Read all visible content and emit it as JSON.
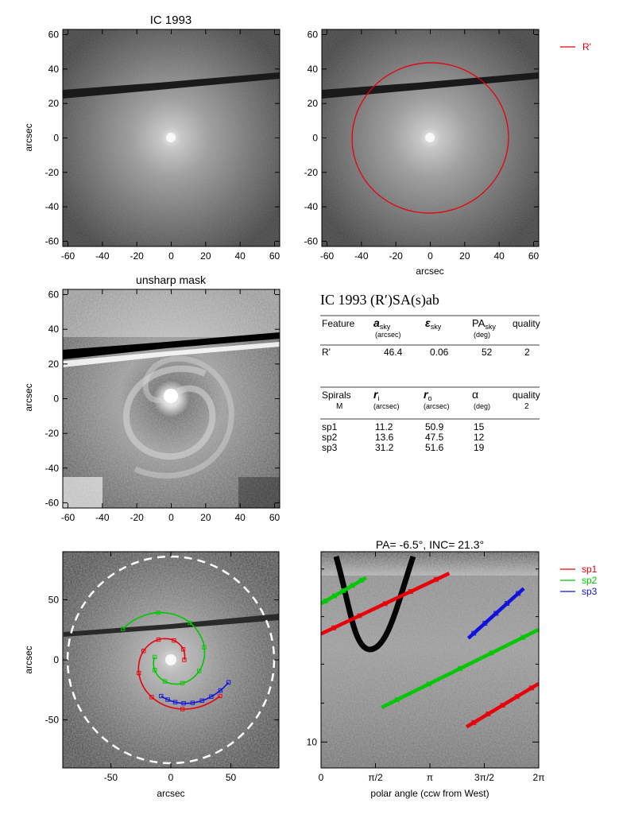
{
  "chart_data": [
    {
      "type": "heatmap",
      "panel": "sky-image",
      "title": "IC 1993",
      "xlabel": "",
      "ylabel": "arcsec",
      "xlim": [
        -63,
        63
      ],
      "ylim": [
        -63,
        63
      ],
      "xticks": [
        "-60",
        "-40",
        "-20",
        "0",
        "20",
        "40",
        "60"
      ],
      "yticks": [
        "60",
        "40",
        "20",
        "0",
        "-20",
        "-40",
        "-60"
      ],
      "colormap": "grayscale"
    },
    {
      "type": "heatmap",
      "panel": "sky-image-with-ring",
      "title": "",
      "xlabel": "arcsec",
      "ylabel": "",
      "xlim": [
        -63,
        63
      ],
      "ylim": [
        -63,
        63
      ],
      "xticks": [
        "-60",
        "-40",
        "-20",
        "0",
        "20",
        "40",
        "60"
      ],
      "yticks": [
        "60",
        "40",
        "20",
        "0",
        "-20",
        "-40",
        "-60"
      ],
      "legend": [
        {
          "label": "R'",
          "color": "#e8000b"
        }
      ],
      "ellipse": {
        "name": "R'",
        "color": "#e8000b",
        "a": 46.4,
        "b": 43.6,
        "pa_deg": 52,
        "center": [
          0,
          0
        ]
      }
    },
    {
      "type": "heatmap",
      "panel": "unsharp-mask",
      "title": "unsharp mask",
      "xlabel": "",
      "ylabel": "arcsec",
      "xlim": [
        -63,
        63
      ],
      "ylim": [
        -63,
        63
      ],
      "xticks": [
        "-60",
        "-40",
        "-20",
        "0",
        "20",
        "40",
        "60"
      ],
      "yticks": [
        "60",
        "40",
        "20",
        "0",
        "-20",
        "-40",
        "-60"
      ]
    },
    {
      "type": "heatmap",
      "panel": "deprojected-spirals",
      "title": "",
      "xlabel": "arcsec",
      "ylabel": "arcsec",
      "xlim": [
        -90,
        90
      ],
      "ylim": [
        -90,
        90
      ],
      "xticks": [
        "-50",
        "0",
        "50"
      ],
      "yticks": [
        "50",
        "0",
        "-50"
      ],
      "dashed_circle": {
        "color": "#ffffff",
        "r": 86
      },
      "series": [
        {
          "name": "sp1",
          "color": "#e8000b",
          "r_inner": 11.2,
          "r_outer": 50.9,
          "pitch_deg": 15,
          "start_angle_deg": 0
        },
        {
          "name": "sp2",
          "color": "#00c800",
          "r_inner": 13.6,
          "r_outer": 47.5,
          "pitch_deg": 12,
          "start_angle_deg": 170
        },
        {
          "name": "sp3",
          "color": "#1010e0",
          "r_inner": 31.2,
          "r_outer": 51.6,
          "pitch_deg": 19,
          "start_angle_deg": 255
        }
      ]
    },
    {
      "type": "line",
      "panel": "polar-plot",
      "title": "PA=  -6.5°, INC=  21.3°",
      "xlabel": "polar angle (ccw from West)",
      "ylabel": "",
      "xlim": [
        0,
        6.2832
      ],
      "xticks": [
        "0",
        "π/2",
        "π",
        "3π/2",
        "2π"
      ],
      "yticks": [
        "10"
      ],
      "legend": [
        {
          "label": "sp1",
          "color": "#e8000b"
        },
        {
          "label": "sp2",
          "color": "#00c800"
        },
        {
          "label": "sp3",
          "color": "#1010e0"
        }
      ],
      "series": [
        {
          "name": "sp1",
          "color": "#e8000b",
          "segments": [
            [
              [
                0.0,
                0.38
              ],
              [
                3.7,
                0.1
              ]
            ],
            [
              [
                4.2,
                0.81
              ],
              [
                6.2832,
                0.61
              ]
            ]
          ]
        },
        {
          "name": "sp2",
          "color": "#00c800",
          "segments": [
            [
              [
                0.0,
                0.24
              ],
              [
                1.3,
                0.12
              ]
            ],
            [
              [
                1.75,
                0.72
              ],
              [
                6.2832,
                0.36
              ]
            ]
          ]
        },
        {
          "name": "sp3",
          "color": "#1010e0",
          "segments": [
            [
              [
                4.25,
                0.4
              ],
              [
                5.85,
                0.17
              ]
            ]
          ]
        }
      ]
    }
  ],
  "table": {
    "title": "IC 1993  (R′)SA(s)ab",
    "feature_headers": {
      "c1": "Feature",
      "c2": "a",
      "c2_sub": "sky",
      "c2_unit": "(arcsec)",
      "c3": "ε",
      "c3_sub": "sky",
      "c4": "PA",
      "c4_sub": "sky",
      "c4_unit": "(deg)",
      "c5": "quality"
    },
    "feature_rows": [
      {
        "feature": "R'",
        "a": "46.4",
        "eps": "0.06",
        "pa": "52",
        "quality": "2"
      }
    ],
    "spiral_headers": {
      "c1": "Spirals",
      "c1_sub": "M",
      "c2": "r",
      "c2_sub": "i",
      "c2_unit": "(arcsec)",
      "c3": "r",
      "c3_sub": "o",
      "c3_unit": "(arcsec)",
      "c4": "α",
      "c4_unit": "(deg)",
      "c5": "quality",
      "c5_sub": "2"
    },
    "spiral_rows": [
      {
        "name": "sp1",
        "ri": "11.2",
        "ro": "50.9",
        "alpha": "15"
      },
      {
        "name": "sp2",
        "ri": "13.6",
        "ro": "47.5",
        "alpha": "12"
      },
      {
        "name": "sp3",
        "ri": "31.2",
        "ro": "51.6",
        "alpha": "19"
      }
    ]
  }
}
